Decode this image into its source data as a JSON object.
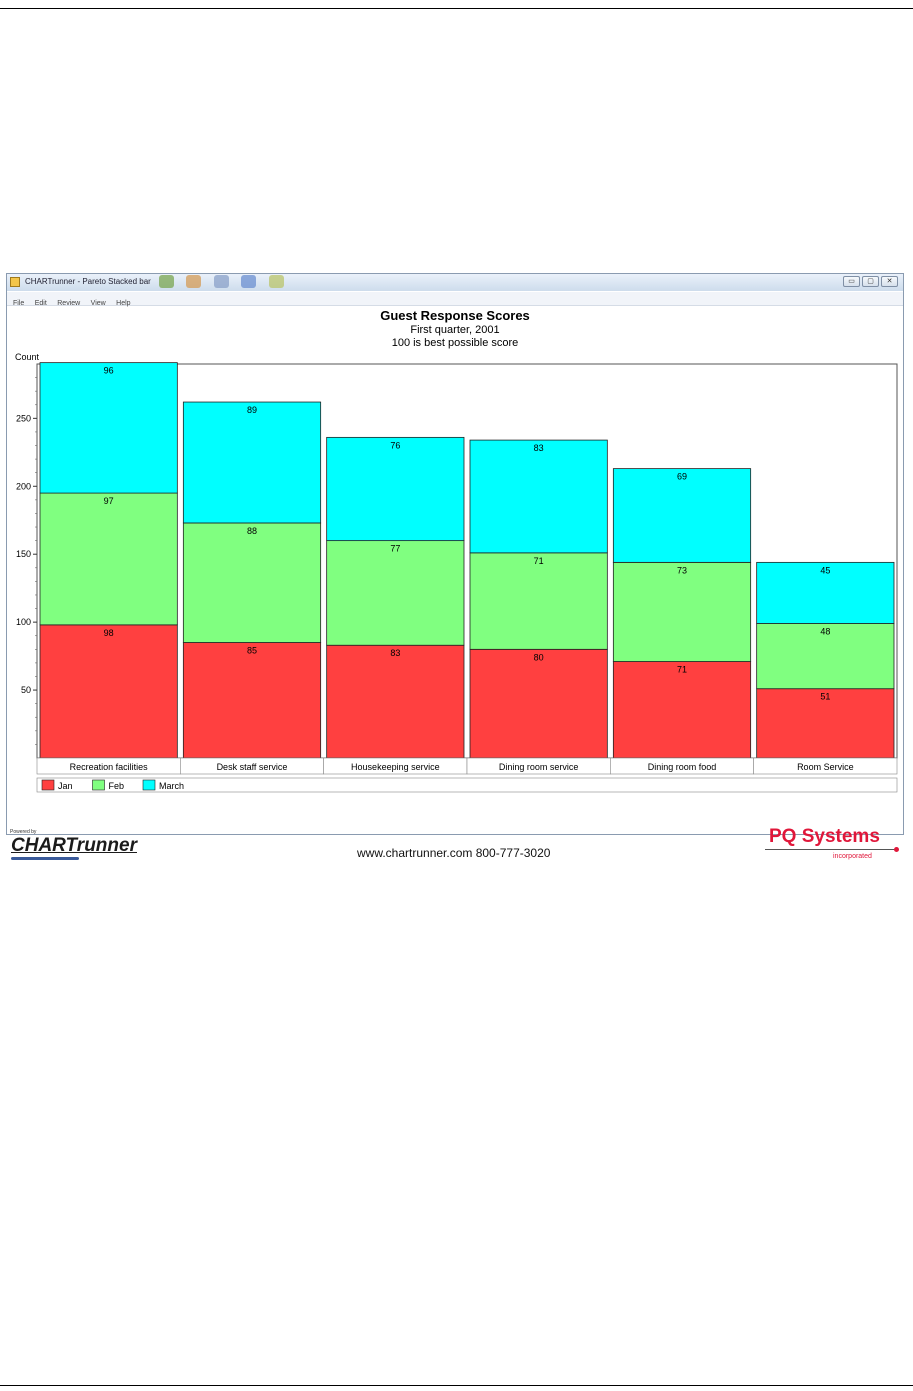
{
  "window": {
    "title": "CHARTrunner - Pareto Stacked bar",
    "menu": [
      "File",
      "Edit",
      "Review",
      "View",
      "Help"
    ],
    "buttons": {
      "minimize": "▭",
      "maximize": "▢",
      "close": "✕"
    }
  },
  "footer": {
    "url": "www.chartrunner.com 800-777-3020",
    "powered_by": "Powered by",
    "chartrunner_logo": "CHARTrunner",
    "pq_logo": "PQ Systems",
    "pq_sub": "incorporated"
  },
  "colors": {
    "jan": "#ff4040",
    "feb": "#80ff80",
    "march": "#00ffff"
  },
  "chart_data": {
    "type": "bar",
    "stacked": true,
    "title": "Guest Response Scores",
    "subtitle": "First quarter, 2001",
    "subtitle2": "100 is best possible score",
    "ylabel": "Count",
    "ylim": [
      0,
      290
    ],
    "yticks": [
      50,
      100,
      150,
      200,
      250
    ],
    "categories": [
      "Recreation facilities",
      "Desk staff service",
      "Housekeeping service",
      "Dining room service",
      "Dining room food",
      "Room Service"
    ],
    "series": [
      {
        "name": "Jan",
        "color": "#ff4040",
        "values": [
          98,
          85,
          83,
          80,
          71,
          51
        ]
      },
      {
        "name": "Feb",
        "color": "#80ff80",
        "values": [
          97,
          88,
          77,
          71,
          73,
          48
        ]
      },
      {
        "name": "March",
        "color": "#00ffff",
        "values": [
          96,
          89,
          76,
          83,
          69,
          45
        ]
      }
    ],
    "legend_position": "bottom-left"
  }
}
